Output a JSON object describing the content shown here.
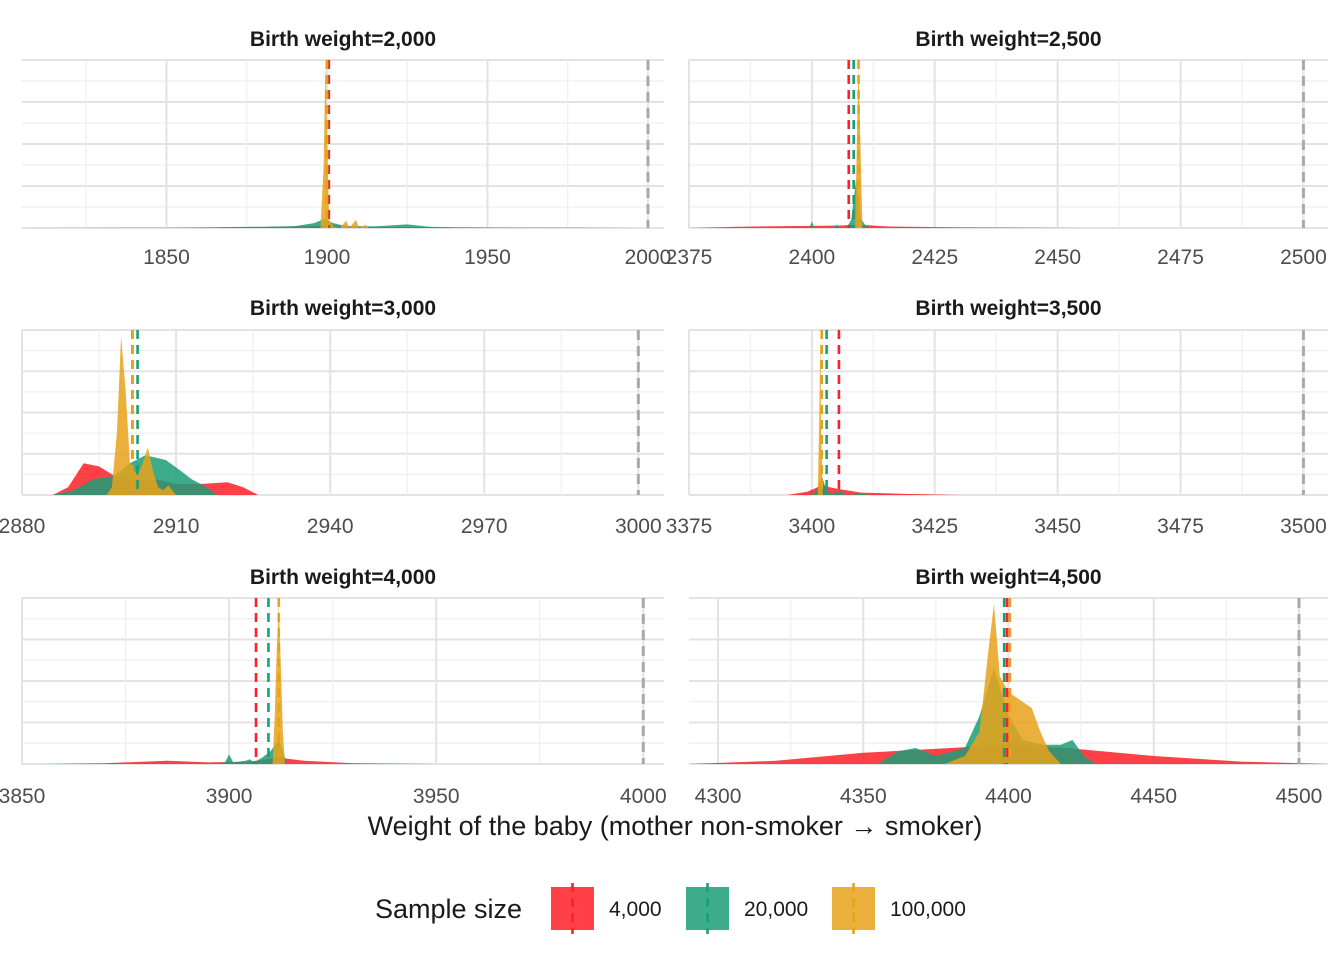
{
  "colors": {
    "n4000": "#FF1F27",
    "n20000": "#1B9E77",
    "n100000": "#E7A21A",
    "reference": "#A9A9A9",
    "grid_major": "#E3E3E3",
    "grid_minor": "#EFEFEF"
  },
  "xlabel": "Weight of the baby (mother non-smoker → smoker)",
  "legend": {
    "title": "Sample size",
    "items": [
      {
        "key": "n4000",
        "label": "4,000"
      },
      {
        "key": "n20000",
        "label": "20,000"
      },
      {
        "key": "n100000",
        "label": "100,000"
      }
    ]
  },
  "chart_data": {
    "type": "area",
    "facets": [
      {
        "title": "Birth weight=2,000",
        "xlim": [
          1805,
          2005
        ],
        "xticks": [
          1850,
          1900,
          1950,
          2000
        ],
        "xtick_labels": [
          "1850",
          "1900",
          "1950",
          "2000"
        ],
        "reference_line": 2000,
        "series": [
          {
            "key": "n4000",
            "mean": 1900.6,
            "density": [
              [
                1805,
                0
              ],
              [
                1850,
                0.002
              ],
              [
                1880,
                0.006
              ],
              [
                1895,
                0.012
              ],
              [
                1900,
                0.018
              ],
              [
                1905,
                0.012
              ],
              [
                1920,
                0.006
              ],
              [
                1950,
                0.003
              ],
              [
                1980,
                0.001
              ],
              [
                2000,
                0
              ]
            ]
          },
          {
            "key": "n20000",
            "mean": 1900,
            "density": [
              [
                1860,
                0
              ],
              [
                1870,
                0.006
              ],
              [
                1880,
                0.008
              ],
              [
                1890,
                0.012
              ],
              [
                1896,
                0.03
              ],
              [
                1899,
                0.055
              ],
              [
                1902,
                0.03
              ],
              [
                1906,
                0.012
              ],
              [
                1915,
                0.01
              ],
              [
                1925,
                0.022
              ],
              [
                1932,
                0.008
              ],
              [
                1945,
                0
              ]
            ]
          },
          {
            "key": "n100000",
            "mean": 1900,
            "density": [
              [
                1898,
                0
              ],
              [
                1899,
                0.4
              ],
              [
                1899.5,
                1.0
              ],
              [
                1900,
                0.6
              ],
              [
                1900.7,
                0.05
              ],
              [
                1902,
                0.01
              ],
              [
                1904,
                0
              ],
              [
                1906,
                0.045
              ],
              [
                1907,
                0
              ],
              [
                1909,
                0.05
              ],
              [
                1910,
                0
              ],
              [
                1912,
                0.02
              ],
              [
                1913,
                0
              ]
            ]
          }
        ]
      },
      {
        "title": "Birth weight=2,500",
        "xlim": [
          2375,
          2505
        ],
        "xticks": [
          2375,
          2400,
          2425,
          2450,
          2475,
          2500
        ],
        "xtick_labels": [
          "2375",
          "2400",
          "2425",
          "2450",
          "2475",
          "2500"
        ],
        "reference_line": 2500,
        "series": [
          {
            "key": "n4000",
            "mean": 2407.5,
            "density": [
              [
                2375,
                0
              ],
              [
                2385,
                0.008
              ],
              [
                2395,
                0.012
              ],
              [
                2405,
                0.015
              ],
              [
                2410,
                0.02
              ],
              [
                2415,
                0.01
              ],
              [
                2430,
                0.004
              ],
              [
                2455,
                0
              ]
            ]
          },
          {
            "key": "n20000",
            "mean": 2408.5,
            "density": [
              [
                2399.5,
                0
              ],
              [
                2400,
                0.04
              ],
              [
                2400.5,
                0
              ],
              [
                2404,
                0
              ],
              [
                2405,
                0.02
              ],
              [
                2406,
                0
              ],
              [
                2407,
                0
              ],
              [
                2408,
                0.05
              ],
              [
                2409,
                0.3
              ],
              [
                2410,
                0.06
              ],
              [
                2411,
                0.01
              ],
              [
                2413,
                0
              ]
            ]
          },
          {
            "key": "n100000",
            "mean": 2409.5,
            "density": [
              [
                2408.8,
                0
              ],
              [
                2409.2,
                0.6
              ],
              [
                2409.5,
                1.0
              ],
              [
                2409.9,
                0.5
              ],
              [
                2410.3,
                0
              ]
            ]
          }
        ]
      },
      {
        "title": "Birth weight=3,000",
        "xlim": [
          2880,
          3005
        ],
        "xticks": [
          2880,
          2910,
          2940,
          2970,
          3000
        ],
        "xtick_labels": [
          "2880",
          "2910",
          "2940",
          "2970",
          "3000"
        ],
        "reference_line": 3000,
        "series": [
          {
            "key": "n4000",
            "mean": 2901.5,
            "density": [
              [
                2886,
                0
              ],
              [
                2889,
                0.05
              ],
              [
                2892,
                0.2
              ],
              [
                2895,
                0.18
              ],
              [
                2898,
                0.12
              ],
              [
                2902,
                0.09
              ],
              [
                2906,
                0.1
              ],
              [
                2910,
                0.07
              ],
              [
                2915,
                0.07
              ],
              [
                2920,
                0.08
              ],
              [
                2923,
                0.05
              ],
              [
                2926,
                0
              ]
            ]
          },
          {
            "key": "n20000",
            "mean": 2902.5,
            "density": [
              [
                2886,
                0
              ],
              [
                2890,
                0.03
              ],
              [
                2894,
                0.1
              ],
              [
                2898,
                0.12
              ],
              [
                2901,
                0.2
              ],
              [
                2904,
                0.25
              ],
              [
                2908,
                0.22
              ],
              [
                2911,
                0.15
              ],
              [
                2913,
                0.1
              ],
              [
                2916,
                0.05
              ],
              [
                2918,
                0
              ]
            ]
          },
          {
            "key": "n100000",
            "mean": 2901.5,
            "density": [
              [
                2896.5,
                0
              ],
              [
                2897.5,
                0.05
              ],
              [
                2898.5,
                0.4
              ],
              [
                2899.3,
                1.0
              ],
              [
                2900.2,
                0.65
              ],
              [
                2901,
                0.2
              ],
              [
                2902.5,
                0.12
              ],
              [
                2903.5,
                0.2
              ],
              [
                2904.5,
                0.3
              ],
              [
                2905.5,
                0.15
              ],
              [
                2906.5,
                0.05
              ],
              [
                2907.5,
                0.03
              ],
              [
                2908.5,
                0.06
              ],
              [
                2910,
                0
              ]
            ]
          }
        ]
      },
      {
        "title": "Birth weight=3,500",
        "xlim": [
          3375,
          3505
        ],
        "xticks": [
          3375,
          3400,
          3425,
          3450,
          3475,
          3500
        ],
        "xtick_labels": [
          "3375",
          "3400",
          "3425",
          "3450",
          "3475",
          "3500"
        ],
        "reference_line": 3500,
        "series": [
          {
            "key": "n4000",
            "mean": 3405.5,
            "density": [
              [
                3395,
                0
              ],
              [
                3399,
                0.02
              ],
              [
                3402,
                0.06
              ],
              [
                3405,
                0.04
              ],
              [
                3410,
                0.015
              ],
              [
                3418,
                0.008
              ],
              [
                3430,
                0
              ]
            ]
          },
          {
            "key": "n20000",
            "mean": 3403,
            "density": [
              [
                3400,
                0
              ],
              [
                3401,
                0.03
              ],
              [
                3402,
                0.12
              ],
              [
                3403,
                0.03
              ],
              [
                3404,
                0.01
              ],
              [
                3406,
                0.02
              ],
              [
                3407,
                0
              ],
              [
                3410,
                0.008
              ],
              [
                3412,
                0
              ]
            ]
          },
          {
            "key": "n100000",
            "mean": 3402,
            "density": [
              [
                3401.2,
                0
              ],
              [
                3401.5,
                0.5
              ],
              [
                3401.7,
                1.0
              ],
              [
                3401.9,
                0.4
              ],
              [
                3402.2,
                0
              ]
            ]
          }
        ]
      },
      {
        "title": "Birth weight=4,000",
        "xlim": [
          3850,
          4005
        ],
        "xticks": [
          3850,
          3900,
          3950,
          4000
        ],
        "xtick_labels": [
          "3850",
          "3900",
          "3950",
          "4000"
        ],
        "reference_line": 4000,
        "series": [
          {
            "key": "n4000",
            "mean": 3906.5,
            "density": [
              [
                3855,
                0
              ],
              [
                3870,
                0.005
              ],
              [
                3885,
                0.02
              ],
              [
                3895,
                0.01
              ],
              [
                3905,
                0.015
              ],
              [
                3912,
                0.04
              ],
              [
                3918,
                0.02
              ],
              [
                3930,
                0.005
              ],
              [
                3950,
                0
              ]
            ]
          },
          {
            "key": "n20000",
            "mean": 3909.5,
            "density": [
              [
                3895,
                0
              ],
              [
                3899,
                0.01
              ],
              [
                3900,
                0.06
              ],
              [
                3901,
                0.01
              ],
              [
                3904,
                0.02
              ],
              [
                3905,
                0.03
              ],
              [
                3906,
                0.01
              ],
              [
                3908,
                0.04
              ],
              [
                3910,
                0.08
              ],
              [
                3912,
                0.15
              ],
              [
                3913,
                0.08
              ],
              [
                3914,
                0
              ]
            ]
          },
          {
            "key": "n100000",
            "mean": 3912,
            "density": [
              [
                3910.5,
                0
              ],
              [
                3911,
                0.3
              ],
              [
                3911.5,
                0.7
              ],
              [
                3912,
                1.0
              ],
              [
                3912.5,
                0.6
              ],
              [
                3913,
                0.2
              ],
              [
                3913.5,
                0
              ]
            ]
          }
        ]
      },
      {
        "title": "Birth weight=4,500",
        "xlim": [
          4290,
          4510
        ],
        "xticks": [
          4300,
          4350,
          4400,
          4450,
          4500
        ],
        "xtick_labels": [
          "4300",
          "4350",
          "4400",
          "4450",
          "4500"
        ],
        "reference_line": 4500,
        "series": [
          {
            "key": "n4000",
            "mean": 4399.5,
            "density": [
              [
                4290,
                0
              ],
              [
                4320,
                0.02
              ],
              [
                4350,
                0.07
              ],
              [
                4380,
                0.1
              ],
              [
                4400,
                0.12
              ],
              [
                4420,
                0.1
              ],
              [
                4450,
                0.05
              ],
              [
                4480,
                0.015
              ],
              [
                4520,
                0
              ]
            ]
          },
          {
            "key": "n20000",
            "mean": 4398.5,
            "density": [
              [
                4355,
                0
              ],
              [
                4362,
                0.08
              ],
              [
                4368,
                0.1
              ],
              [
                4375,
                0.05
              ],
              [
                4385,
                0.1
              ],
              [
                4390,
                0.3
              ],
              [
                4395,
                0.6
              ],
              [
                4400,
                0.3
              ],
              [
                4405,
                0.15
              ],
              [
                4412,
                0.12
              ],
              [
                4418,
                0.12
              ],
              [
                4422,
                0.15
              ],
              [
                4426,
                0.05
              ],
              [
                4430,
                0
              ]
            ]
          },
          {
            "key": "n100000",
            "mean": 4400.5,
            "density": [
              [
                4378,
                0
              ],
              [
                4385,
                0.05
              ],
              [
                4390,
                0.2
              ],
              [
                4393,
                0.7
              ],
              [
                4395,
                1.0
              ],
              [
                4397,
                0.55
              ],
              [
                4400,
                0.45
              ],
              [
                4404,
                0.4
              ],
              [
                4408,
                0.35
              ],
              [
                4411,
                0.2
              ],
              [
                4414,
                0.08
              ],
              [
                4418,
                0
              ]
            ]
          }
        ]
      }
    ]
  }
}
